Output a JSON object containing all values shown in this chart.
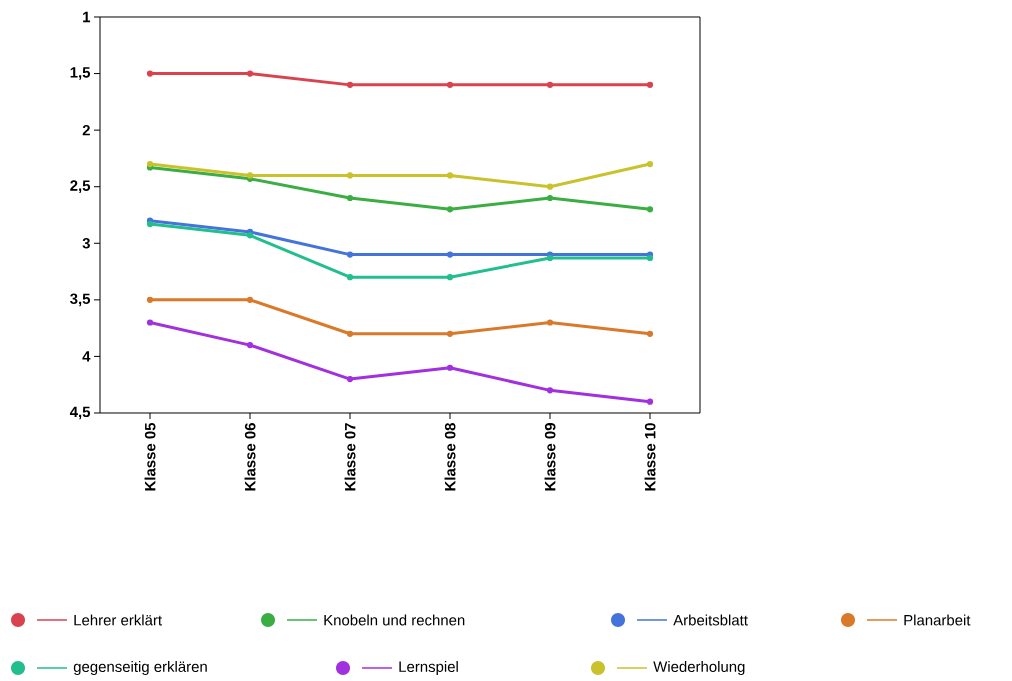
{
  "chart_data": {
    "type": "line",
    "categories": [
      "Klasse 05",
      "Klasse 06",
      "Klasse 07",
      "Klasse 08",
      "Klasse 09",
      "Klasse 10"
    ],
    "ylim": [
      4.5,
      1
    ],
    "yticks": [
      1,
      {
        "value": 1.5,
        "label": "1,5"
      },
      2,
      {
        "value": 2.5,
        "label": "2,5"
      },
      3,
      {
        "value": 3.5,
        "label": "3,5"
      },
      4,
      {
        "value": 4.5,
        "label": "4,5"
      }
    ],
    "series": [
      {
        "name": "Lehrer erklärt",
        "color": "#d9434f",
        "values": [
          1.5,
          1.5,
          1.6,
          1.6,
          1.6,
          1.6
        ]
      },
      {
        "name": "Knobeln und rechnen",
        "color": "#3aae43",
        "values": [
          2.33,
          2.43,
          2.6,
          2.7,
          2.6,
          2.7
        ]
      },
      {
        "name": "Arbeitsblatt",
        "color": "#4473dc",
        "values": [
          2.8,
          2.9,
          3.1,
          3.1,
          3.1,
          3.1
        ]
      },
      {
        "name": "Planarbeit",
        "color": "#d87a2a",
        "values": [
          3.5,
          3.5,
          3.8,
          3.8,
          3.7,
          3.8
        ]
      },
      {
        "name": "gegenseitig erklären",
        "color": "#22be8e",
        "values": [
          2.83,
          2.93,
          3.3,
          3.3,
          3.13,
          3.13
        ]
      },
      {
        "name": "Lernspiel",
        "color": "#a130de",
        "values": [
          3.7,
          3.9,
          4.2,
          4.1,
          4.3,
          4.4
        ]
      },
      {
        "name": "Wiederholung",
        "color": "#c9c22c",
        "values": [
          2.3,
          2.4,
          2.4,
          2.4,
          2.5,
          2.3
        ]
      }
    ],
    "legend": "bottom",
    "marker": "circle",
    "line_style": "solid",
    "grid": false
  }
}
